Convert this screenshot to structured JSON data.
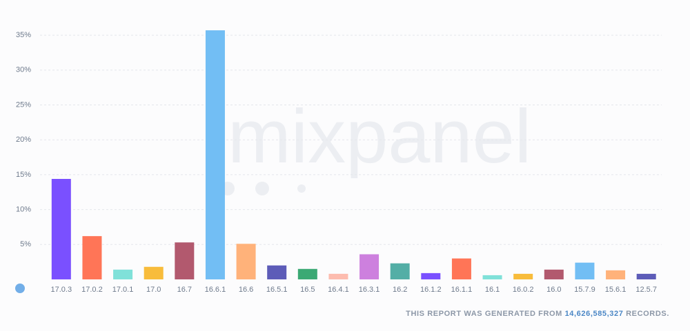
{
  "chart_data": {
    "type": "bar",
    "watermark": "mixpanel",
    "categories": [
      "17.0.3",
      "17.0.2",
      "17.0.1",
      "17.0",
      "16.7",
      "16.6.1",
      "16.6",
      "16.5.1",
      "16.5",
      "16.4.1",
      "16.3.1",
      "16.2",
      "16.1.2",
      "16.1.1",
      "16.1",
      "16.0.2",
      "16.0",
      "15.7.9",
      "15.6.1",
      "12.5.7"
    ],
    "values": [
      14.4,
      6.2,
      1.4,
      1.8,
      5.3,
      35.7,
      5.1,
      2.0,
      1.5,
      0.8,
      3.6,
      2.3,
      0.9,
      3.0,
      0.6,
      0.8,
      1.4,
      2.4,
      1.3,
      0.8
    ],
    "colors": [
      "#7a50ff",
      "#ff7557",
      "#80e1d9",
      "#f8bc3b",
      "#b2596e",
      "#72bef4",
      "#ffb27a",
      "#5d5cb8",
      "#3ba974",
      "#fdbcaf",
      "#cd80de",
      "#53aea6",
      "#7a50ff",
      "#ff7557",
      "#80e1d9",
      "#f8bc3b",
      "#b2596e",
      "#72bef4",
      "#ffb27a",
      "#5d5cb8"
    ],
    "ylim": [
      0,
      36
    ],
    "yticks": [
      {
        "value": 5,
        "label": "5%"
      },
      {
        "value": 10,
        "label": "10%"
      },
      {
        "value": 15,
        "label": "15%"
      },
      {
        "value": 20,
        "label": "20%"
      },
      {
        "value": 25,
        "label": "25%"
      },
      {
        "value": 30,
        "label": "30%"
      },
      {
        "value": 35,
        "label": "35%"
      }
    ],
    "grid": true
  },
  "footer": {
    "prefix": "THIS REPORT WAS GENERATED FROM",
    "records": "14,626,585,327",
    "suffix": "RECORDS."
  }
}
